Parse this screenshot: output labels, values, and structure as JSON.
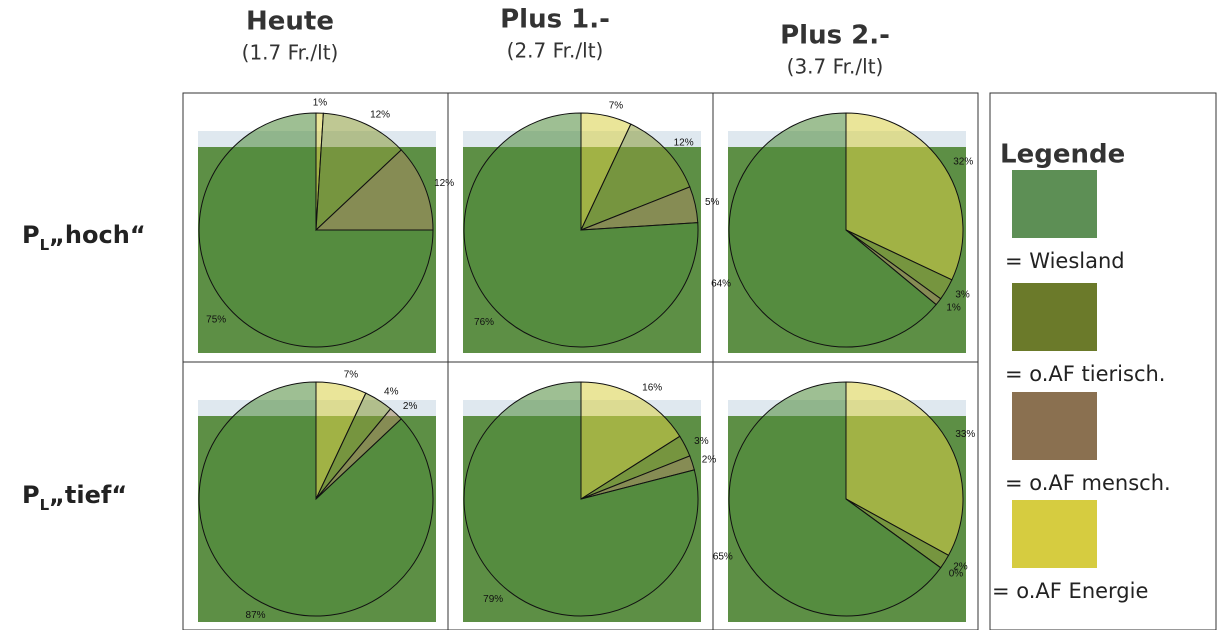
{
  "columns": [
    {
      "title": "Heute",
      "price": "(1.7 Fr./lt)"
    },
    {
      "title": "Plus 1.-",
      "price": "(2.7 Fr./lt)"
    },
    {
      "title": "Plus 2.-",
      "price": "(3.7 Fr./lt)"
    }
  ],
  "rows": [
    {
      "p": "P",
      "sub": "L",
      "label": "„hoch“"
    },
    {
      "p": "P",
      "sub": "L",
      "label": "„tief“"
    }
  ],
  "legend": {
    "title": "Legende",
    "items": [
      "= Wiesland",
      "= o.AF tierisch.",
      "= o.AF mensch.",
      "= o.AF Energie"
    ]
  },
  "chart_data": [
    {
      "type": "pie",
      "values": [
        1,
        12,
        12,
        75
      ],
      "value_labels": [
        "1%",
        "12%",
        "12%",
        "75%"
      ],
      "colors": [
        "#d8cf45",
        "#8a9a3a",
        "#a88a60",
        "#4f8a3a"
      ]
    },
    {
      "type": "pie",
      "values": [
        7,
        12,
        5,
        76
      ],
      "value_labels": [
        "7%",
        "12%",
        "5%",
        "76%"
      ],
      "colors": [
        "#d8cf45",
        "#8a9a3a",
        "#a88a60",
        "#4f8a3a"
      ]
    },
    {
      "type": "pie",
      "values": [
        32,
        3,
        1,
        64
      ],
      "value_labels": [
        "32%",
        "3%",
        "1%",
        "64%"
      ],
      "colors": [
        "#d8cf45",
        "#8a9a3a",
        "#a88a60",
        "#4f8a3a"
      ]
    },
    {
      "type": "pie",
      "values": [
        7,
        4,
        2,
        87
      ],
      "value_labels": [
        "7%",
        "4%",
        "2%",
        "87%"
      ],
      "colors": [
        "#d8cf45",
        "#8a9a3a",
        "#a88a60",
        "#4f8a3a"
      ]
    },
    {
      "type": "pie",
      "values": [
        16,
        3,
        2,
        79
      ],
      "value_labels": [
        "16%",
        "3%",
        "2%",
        "79%"
      ],
      "colors": [
        "#d8cf45",
        "#8a9a3a",
        "#a88a60",
        "#4f8a3a"
      ]
    },
    {
      "type": "pie",
      "values": [
        33,
        2,
        0,
        65
      ],
      "value_labels": [
        "33%",
        "2%",
        "0%",
        "65%"
      ],
      "colors": [
        "#d8cf45",
        "#8a9a3a",
        "#a88a60",
        "#4f8a3a"
      ]
    }
  ]
}
